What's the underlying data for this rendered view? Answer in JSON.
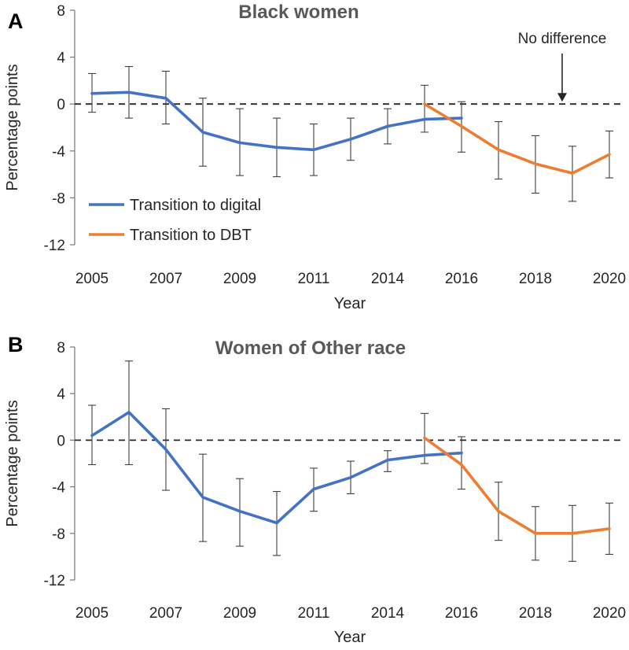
{
  "chart_data": [
    {
      "type": "line",
      "panel_label": "A",
      "title": "Black women",
      "xlabel": "Year",
      "ylabel": "Percentage points",
      "ylim": [
        -12,
        8
      ],
      "yticks": [
        8,
        4,
        0,
        -4,
        -8,
        -12
      ],
      "ytick_labels": [
        "8",
        "4",
        "0",
        "-4",
        "-8",
        "-12"
      ],
      "x_positions": [
        2005,
        2006,
        2007,
        2008,
        2009,
        2010,
        2011,
        2012,
        2014,
        2015,
        2016,
        2017,
        2018,
        2019,
        2020
      ],
      "x_tick_labels": [
        "2005",
        "2007",
        "2009",
        "2011",
        "2014",
        "2016",
        "2018",
        "2020"
      ],
      "reference_line": {
        "y": 0,
        "style": "dashed"
      },
      "annotation": {
        "text": "No difference",
        "x": 2019,
        "y": 0
      },
      "legend": {
        "placement": "lower-left"
      },
      "series": [
        {
          "name": "Transition to digital",
          "color": "#4472C4",
          "x": [
            2005,
            2006,
            2007,
            2008,
            2009,
            2010,
            2011,
            2012,
            2014,
            2015,
            2016
          ],
          "y": [
            0.9,
            1.0,
            0.5,
            -2.4,
            -3.3,
            -3.7,
            -3.9,
            -3.0,
            -1.9,
            -1.3,
            -1.2
          ],
          "err_low": [
            -0.7,
            -1.2,
            -1.7,
            -5.3,
            -6.1,
            -6.2,
            -6.1,
            -4.8,
            -3.4,
            -2.4,
            -4.1
          ],
          "err_high": [
            2.6,
            3.2,
            2.8,
            0.5,
            -0.4,
            -1.2,
            -1.7,
            -1.2,
            -0.4,
            1.6,
            0.2
          ]
        },
        {
          "name": "Transition to DBT",
          "color": "#ED7D31",
          "x": [
            2015,
            2016,
            2017,
            2018,
            2019,
            2020
          ],
          "y": [
            0.0,
            -1.9,
            -3.9,
            -5.1,
            -5.9,
            -4.3
          ],
          "err_low": [
            null,
            null,
            -6.4,
            -7.6,
            -8.3,
            -6.3
          ],
          "err_high": [
            null,
            null,
            -1.5,
            -2.7,
            -3.6,
            -2.3
          ]
        }
      ]
    },
    {
      "type": "line",
      "panel_label": "B",
      "title": "Women of Other race",
      "xlabel": "Year",
      "ylabel": "Percentage points",
      "ylim": [
        -12,
        8
      ],
      "yticks": [
        8,
        4,
        0,
        -4,
        -8,
        -12
      ],
      "ytick_labels": [
        "8",
        "4",
        "0",
        "-4",
        "-8",
        "-12"
      ],
      "x_positions": [
        2005,
        2006,
        2007,
        2008,
        2009,
        2010,
        2011,
        2012,
        2014,
        2015,
        2016,
        2017,
        2018,
        2019,
        2020
      ],
      "x_tick_labels": [
        "2005",
        "2007",
        "2009",
        "2011",
        "2014",
        "2016",
        "2018",
        "2020"
      ],
      "reference_line": {
        "y": 0,
        "style": "dashed"
      },
      "series": [
        {
          "name": "Transition to digital",
          "color": "#4472C4",
          "x": [
            2005,
            2006,
            2007,
            2008,
            2009,
            2010,
            2011,
            2012,
            2014,
            2015,
            2016
          ],
          "y": [
            0.4,
            2.4,
            -0.8,
            -4.9,
            -6.1,
            -7.1,
            -4.2,
            -3.2,
            -1.7,
            -1.3,
            -1.1
          ],
          "err_low": [
            -2.1,
            -2.1,
            -4.3,
            -8.7,
            -9.1,
            -9.9,
            -6.1,
            -4.6,
            -2.7,
            -2.0,
            -4.2
          ],
          "err_high": [
            3.0,
            6.8,
            2.7,
            -1.2,
            -3.3,
            -4.4,
            -2.4,
            -1.8,
            -0.9,
            2.3,
            0.3
          ]
        },
        {
          "name": "Transition to DBT",
          "color": "#ED7D31",
          "x": [
            2015,
            2016,
            2017,
            2018,
            2019,
            2020
          ],
          "y": [
            0.2,
            -2.1,
            -6.1,
            -8.0,
            -8.0,
            -7.6
          ],
          "err_low": [
            null,
            null,
            -8.6,
            -10.3,
            -10.4,
            -9.8
          ],
          "err_high": [
            null,
            null,
            -3.6,
            -5.7,
            -5.6,
            -5.4
          ]
        }
      ]
    }
  ]
}
